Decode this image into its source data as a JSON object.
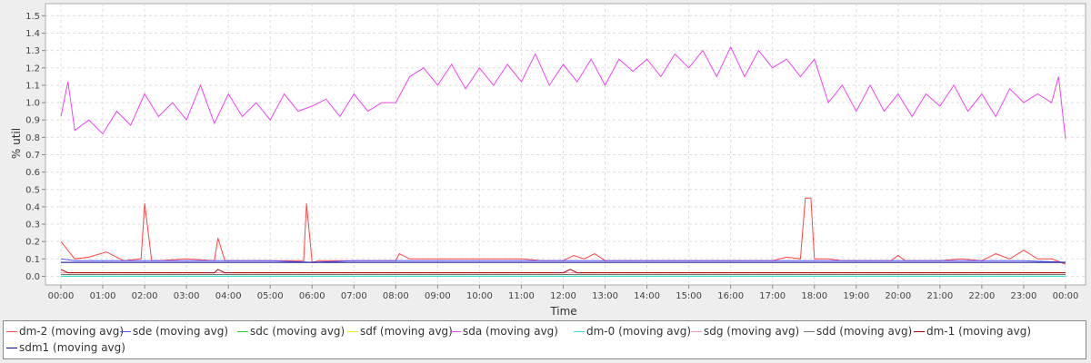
{
  "chart_data": {
    "type": "line",
    "title": "",
    "xlabel": "Time",
    "ylabel": "% util",
    "xlim": [
      "00:00",
      "00:00"
    ],
    "ylim": [
      -0.05,
      1.57
    ],
    "x_ticks": [
      "00:00",
      "01:00",
      "02:00",
      "03:00",
      "04:00",
      "05:00",
      "06:00",
      "07:00",
      "08:00",
      "09:00",
      "10:00",
      "11:00",
      "12:00",
      "13:00",
      "14:00",
      "15:00",
      "16:00",
      "17:00",
      "18:00",
      "19:00",
      "20:00",
      "21:00",
      "22:00",
      "23:00",
      "00:00"
    ],
    "y_ticks": [
      "0.0",
      "0.1",
      "0.2",
      "0.3",
      "0.4",
      "0.5",
      "0.6",
      "0.7",
      "0.8",
      "0.9",
      "1.0",
      "1.1",
      "1.2",
      "1.3",
      "1.4",
      "1.5"
    ],
    "grid": true,
    "legend_position": "bottom",
    "series": [
      {
        "name": "dm-2 (moving avg)",
        "color": "#ff4444",
        "x": [
          "00:00",
          "00:20",
          "00:40",
          "01:05",
          "01:30",
          "01:55",
          "02:00",
          "02:10",
          "02:20",
          "03:00",
          "03:40",
          "03:45",
          "03:55",
          "04:30",
          "05:00",
          "05:30",
          "05:48",
          "05:52",
          "06:00",
          "06:10",
          "06:30",
          "07:00",
          "07:30",
          "08:00",
          "08:05",
          "08:20",
          "08:40",
          "09:00",
          "09:30",
          "10:00",
          "10:30",
          "11:00",
          "11:30",
          "12:00",
          "12:15",
          "12:30",
          "12:45",
          "13:00",
          "13:30",
          "14:00",
          "14:30",
          "15:00",
          "15:30",
          "16:00",
          "16:30",
          "17:00",
          "17:20",
          "17:40",
          "17:47",
          "17:55",
          "18:00",
          "18:20",
          "18:40",
          "19:00",
          "19:30",
          "19:50",
          "20:00",
          "20:10",
          "20:30",
          "21:00",
          "21:30",
          "22:00",
          "22:20",
          "22:40",
          "23:00",
          "23:20",
          "23:40",
          "00:00"
        ],
        "values": [
          0.2,
          0.1,
          0.11,
          0.14,
          0.09,
          0.1,
          0.42,
          0.09,
          0.09,
          0.1,
          0.09,
          0.22,
          0.09,
          0.09,
          0.09,
          0.09,
          0.09,
          0.42,
          0.08,
          0.09,
          0.09,
          0.09,
          0.09,
          0.09,
          0.13,
          0.1,
          0.1,
          0.1,
          0.1,
          0.1,
          0.1,
          0.1,
          0.09,
          0.09,
          0.12,
          0.1,
          0.13,
          0.09,
          0.09,
          0.09,
          0.09,
          0.09,
          0.09,
          0.09,
          0.09,
          0.09,
          0.11,
          0.1,
          0.45,
          0.45,
          0.1,
          0.1,
          0.09,
          0.09,
          0.09,
          0.09,
          0.12,
          0.09,
          0.09,
          0.09,
          0.1,
          0.09,
          0.13,
          0.1,
          0.15,
          0.1,
          0.1,
          0.07
        ]
      },
      {
        "name": "sde (moving avg)",
        "color": "#5555ff",
        "x": [
          "00:00",
          "00:20",
          "01:00",
          "02:00",
          "03:00",
          "04:00",
          "05:00",
          "06:00",
          "07:00",
          "08:00",
          "09:00",
          "10:00",
          "11:00",
          "12:00",
          "13:00",
          "14:00",
          "15:00",
          "16:00",
          "17:00",
          "18:00",
          "19:00",
          "20:00",
          "21:00",
          "22:00",
          "23:00",
          "00:00"
        ],
        "values": [
          0.1,
          0.09,
          0.09,
          0.09,
          0.09,
          0.09,
          0.09,
          0.08,
          0.09,
          0.09,
          0.09,
          0.09,
          0.09,
          0.09,
          0.09,
          0.09,
          0.09,
          0.09,
          0.09,
          0.09,
          0.09,
          0.09,
          0.09,
          0.09,
          0.09,
          0.08
        ]
      },
      {
        "name": "sdc (moving avg)",
        "color": "#33cc33",
        "x": [
          "00:00",
          "06:00",
          "12:00",
          "18:00",
          "00:00"
        ],
        "values": [
          0.0,
          0.0,
          0.0,
          0.0,
          0.0
        ]
      },
      {
        "name": "sdf (moving avg)",
        "color": "#eeee00",
        "x": [
          "00:00",
          "06:00",
          "12:00",
          "18:00",
          "00:00"
        ],
        "values": [
          0.01,
          0.01,
          0.01,
          0.01,
          0.01
        ]
      },
      {
        "name": "sda (moving avg)",
        "color": "#ee44ee",
        "x": [
          "00:00",
          "00:10",
          "00:20",
          "00:40",
          "01:00",
          "01:20",
          "01:40",
          "02:00",
          "02:20",
          "02:40",
          "03:00",
          "03:20",
          "03:40",
          "04:00",
          "04:20",
          "04:40",
          "05:00",
          "05:20",
          "05:40",
          "06:00",
          "06:20",
          "06:40",
          "07:00",
          "07:20",
          "07:40",
          "08:00",
          "08:20",
          "08:40",
          "09:00",
          "09:20",
          "09:40",
          "10:00",
          "10:20",
          "10:40",
          "11:00",
          "11:20",
          "11:40",
          "12:00",
          "12:20",
          "12:40",
          "13:00",
          "13:20",
          "13:40",
          "14:00",
          "14:20",
          "14:40",
          "15:00",
          "15:20",
          "15:40",
          "16:00",
          "16:20",
          "16:40",
          "17:00",
          "17:20",
          "17:40",
          "18:00",
          "18:20",
          "18:40",
          "19:00",
          "19:20",
          "19:40",
          "20:00",
          "20:20",
          "20:40",
          "21:00",
          "21:20",
          "21:40",
          "22:00",
          "22:20",
          "22:40",
          "23:00",
          "23:20",
          "23:40",
          "23:50",
          "00:00"
        ],
        "values": [
          0.92,
          1.12,
          0.84,
          0.9,
          0.82,
          0.95,
          0.87,
          1.05,
          0.92,
          1.0,
          0.9,
          1.1,
          0.88,
          1.05,
          0.92,
          1.0,
          0.9,
          1.05,
          0.95,
          0.98,
          1.02,
          0.92,
          1.05,
          0.95,
          1.0,
          1.0,
          1.15,
          1.2,
          1.1,
          1.22,
          1.08,
          1.2,
          1.1,
          1.22,
          1.12,
          1.28,
          1.1,
          1.22,
          1.12,
          1.25,
          1.1,
          1.25,
          1.18,
          1.25,
          1.15,
          1.28,
          1.2,
          1.3,
          1.15,
          1.32,
          1.15,
          1.3,
          1.2,
          1.25,
          1.15,
          1.25,
          1.0,
          1.1,
          0.95,
          1.1,
          0.95,
          1.05,
          0.92,
          1.05,
          0.98,
          1.1,
          0.95,
          1.05,
          0.92,
          1.08,
          1.0,
          1.05,
          1.0,
          1.15,
          0.79
        ]
      },
      {
        "name": "dm-0 (moving avg)",
        "color": "#33dddd",
        "x": [
          "00:00",
          "06:00",
          "12:00",
          "18:00",
          "00:00"
        ],
        "values": [
          0.0,
          0.0,
          0.0,
          0.0,
          0.0
        ]
      },
      {
        "name": "sdg (moving avg)",
        "color": "#ff99aa",
        "x": [
          "00:00",
          "06:00",
          "12:00",
          "18:00",
          "00:00"
        ],
        "values": [
          0.02,
          0.02,
          0.02,
          0.02,
          0.02
        ]
      },
      {
        "name": "sdd (moving avg)",
        "color": "#777777",
        "x": [
          "00:00",
          "06:00",
          "12:00",
          "18:00",
          "00:00"
        ],
        "values": [
          0.01,
          0.01,
          0.01,
          0.01,
          0.01
        ]
      },
      {
        "name": "dm-1 (moving avg)",
        "color": "#aa0000",
        "x": [
          "00:00",
          "00:10",
          "00:20",
          "02:00",
          "03:00",
          "03:40",
          "03:45",
          "03:55",
          "05:00",
          "06:00",
          "09:00",
          "12:00",
          "12:10",
          "12:20",
          "15:00",
          "18:00",
          "21:00",
          "00:00"
        ],
        "values": [
          0.04,
          0.02,
          0.02,
          0.02,
          0.02,
          0.02,
          0.04,
          0.02,
          0.02,
          0.02,
          0.02,
          0.02,
          0.04,
          0.02,
          0.02,
          0.02,
          0.02,
          0.02
        ]
      },
      {
        "name": "sdm1 (moving avg)",
        "color": "#000088",
        "x": [
          "00:00",
          "06:00",
          "12:00",
          "18:00",
          "00:00"
        ],
        "values": [
          0.08,
          0.08,
          0.08,
          0.08,
          0.08
        ]
      }
    ]
  }
}
